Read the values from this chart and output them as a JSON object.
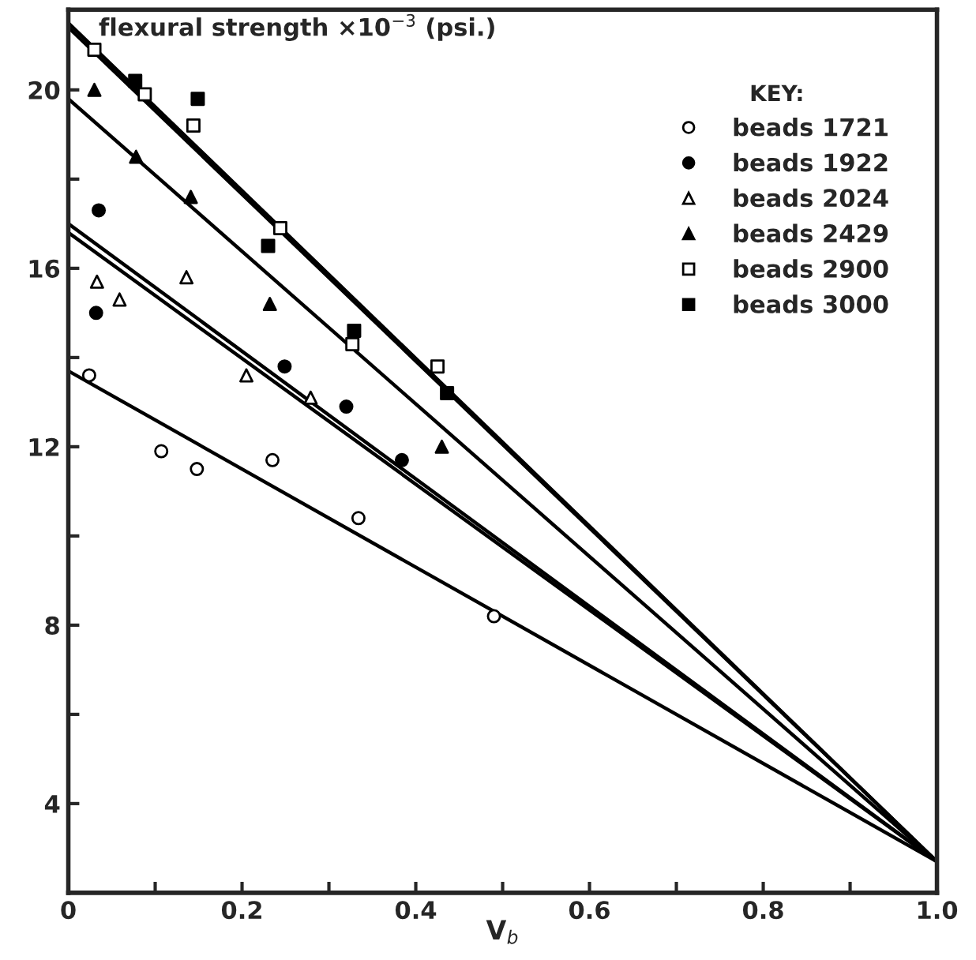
{
  "chart_data": {
    "type": "scatter",
    "ylabel": "flexural strength ×10$^{−3}$ (psi.)",
    "xlabel": "V$_{b}$",
    "legend_title": "KEY:",
    "legend": "top right",
    "grid": false,
    "xlim": [
      0,
      1.0
    ],
    "ylim": [
      2,
      21.8
    ],
    "xticks": [
      0,
      {
        "value": 0.1,
        "label": null
      },
      0.2,
      {
        "value": 0.3,
        "label": null
      },
      0.4,
      {
        "value": 0.5,
        "label": null
      },
      0.6,
      {
        "value": 0.7,
        "label": null
      },
      0.8,
      {
        "value": 0.9,
        "label": null
      },
      {
        "value": 1.0,
        "label": "1.0"
      }
    ],
    "yticks": [
      4,
      {
        "value": 6,
        "label": null
      },
      8,
      {
        "value": 10,
        "label": null
      },
      12,
      {
        "value": 14,
        "label": null
      },
      16,
      {
        "value": 18,
        "label": null
      },
      20
    ],
    "series": [
      {
        "name": "beads 1721",
        "marker": "circle",
        "color": "#ffffff",
        "x": [
          0.024,
          0.107,
          0.148,
          0.235,
          0.334,
          0.49
        ],
        "values": [
          13.6,
          11.9,
          11.5,
          11.7,
          10.4,
          8.2
        ]
      },
      {
        "name": "beads 1922",
        "marker": "circle",
        "color": "#000000",
        "x": [
          0.035,
          0.032,
          0.249,
          0.32,
          0.384
        ],
        "values": [
          17.3,
          15.0,
          13.8,
          12.9,
          11.7
        ]
      },
      {
        "name": "beads 2024",
        "marker": "triangle",
        "color": "#ffffff",
        "x": [
          0.033,
          0.059,
          0.136,
          0.205,
          0.279
        ],
        "values": [
          15.7,
          15.3,
          15.8,
          13.6,
          13.1
        ]
      },
      {
        "name": "beads 2429",
        "marker": "triangle",
        "color": "#000000",
        "x": [
          0.03,
          0.078,
          0.141,
          0.232,
          0.43
        ],
        "values": [
          20.0,
          18.5,
          17.6,
          15.2,
          12.0
        ]
      },
      {
        "name": "beads 2900",
        "marker": "square",
        "color": "#ffffff",
        "x": [
          0.03,
          0.088,
          0.144,
          0.244,
          0.327,
          0.425
        ],
        "values": [
          20.9,
          19.9,
          19.2,
          16.9,
          14.3,
          13.8
        ]
      },
      {
        "name": "beads 3000",
        "marker": "square",
        "color": "#000000",
        "x": [
          0.077,
          0.149,
          0.23,
          0.329,
          0.436
        ],
        "values": [
          20.2,
          19.8,
          16.5,
          14.6,
          13.2
        ]
      },
      {
        "type": "line",
        "marker": "none",
        "color": "#000000",
        "x": [
          0,
          1.0
        ],
        "values": [
          13.7,
          2.7
        ]
      },
      {
        "type": "line",
        "marker": "none",
        "color": "#000000",
        "x": [
          0,
          1.0
        ],
        "values": [
          16.8,
          2.7
        ]
      },
      {
        "type": "line",
        "marker": "none",
        "color": "#000000",
        "x": [
          0,
          1.0
        ],
        "values": [
          17.0,
          2.7
        ]
      },
      {
        "type": "line",
        "marker": "none",
        "color": "#000000",
        "x": [
          0,
          1.0
        ],
        "values": [
          19.8,
          2.7
        ]
      },
      {
        "type": "line",
        "marker": "none",
        "color": "#000000",
        "x": [
          0,
          1.0
        ],
        "values": [
          21.4,
          2.7
        ]
      },
      {
        "type": "line",
        "marker": "none",
        "color": "#000000",
        "x": [
          0,
          1.0
        ],
        "values": [
          21.5,
          2.7
        ]
      }
    ]
  }
}
